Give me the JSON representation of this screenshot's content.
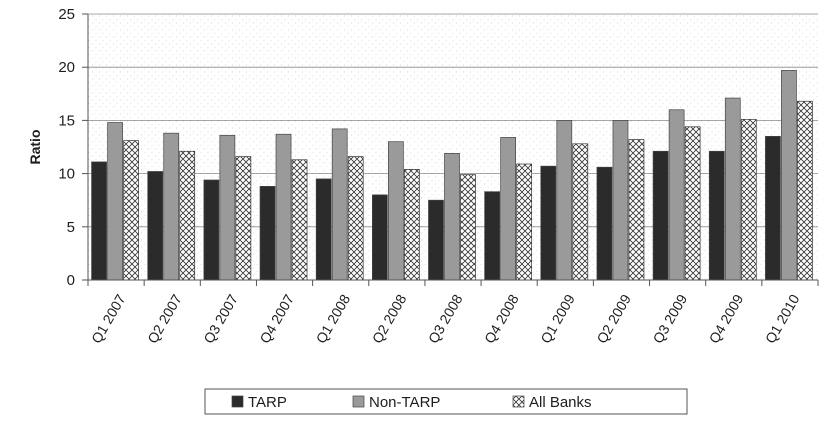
{
  "chart_data": {
    "type": "bar",
    "title": "",
    "xlabel": "",
    "ylabel": "Ratio",
    "ylim": [
      0,
      25
    ],
    "yticks": [
      0,
      5,
      10,
      15,
      20,
      25
    ],
    "grid": "horizontal",
    "legend_position": "bottom",
    "categories": [
      "Q1 2007",
      "Q2 2007",
      "Q3 2007",
      "Q4 2007",
      "Q1 2008",
      "Q2 2008",
      "Q3 2008",
      "Q4 2008",
      "Q1 2009",
      "Q2 2009",
      "Q3 2009",
      "Q4 2009",
      "Q1 2010"
    ],
    "series": [
      {
        "name": "TARP",
        "color": "#2b2b2b",
        "pattern": "solid",
        "values": [
          11.1,
          10.2,
          9.4,
          8.8,
          9.5,
          8.0,
          7.5,
          8.3,
          10.7,
          10.6,
          12.1,
          12.1,
          13.5
        ]
      },
      {
        "name": "Non-TARP",
        "color": "#9a9a9a",
        "pattern": "solid",
        "values": [
          14.8,
          13.8,
          13.6,
          13.7,
          14.2,
          13.0,
          11.9,
          13.4,
          15.0,
          15.0,
          16.0,
          17.1,
          19.7
        ]
      },
      {
        "name": "All Banks",
        "color": "#ffffff",
        "pattern": "crosshatch",
        "values": [
          13.1,
          12.1,
          11.6,
          11.3,
          11.6,
          10.4,
          9.9,
          10.9,
          12.8,
          13.2,
          14.4,
          15.1,
          16.8
        ]
      }
    ]
  }
}
